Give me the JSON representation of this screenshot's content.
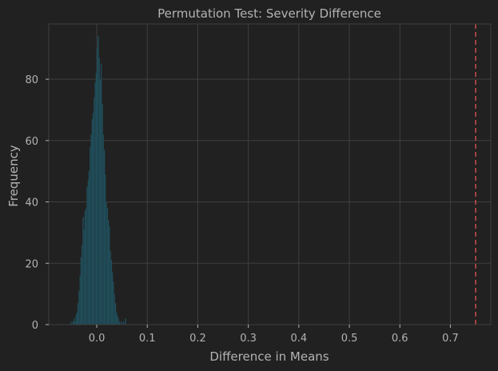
{
  "chart_data": {
    "type": "histogram",
    "title": "Permutation Test: Severity Difference",
    "xlabel": "Difference in Means",
    "ylabel": "Frequency",
    "xlim": [
      -0.095,
      0.78
    ],
    "ylim": [
      0,
      98
    ],
    "xticks": [
      0.0,
      0.1,
      0.2,
      0.3,
      0.4,
      0.5,
      0.6,
      0.7
    ],
    "xtick_labels": [
      "0.0",
      "0.1",
      "0.2",
      "0.3",
      "0.4",
      "0.5",
      "0.6",
      "0.7"
    ],
    "yticks": [
      0,
      20,
      40,
      60,
      80
    ],
    "ytick_labels": [
      "0",
      "20",
      "40",
      "60",
      "80"
    ],
    "grid": true,
    "bin_width": 0.002,
    "bins": [
      [
        -0.052,
        1
      ],
      [
        -0.048,
        1
      ],
      [
        -0.046,
        2
      ],
      [
        -0.044,
        1
      ],
      [
        -0.042,
        3
      ],
      [
        -0.04,
        4
      ],
      [
        -0.038,
        7
      ],
      [
        -0.036,
        11
      ],
      [
        -0.034,
        16
      ],
      [
        -0.032,
        22
      ],
      [
        -0.03,
        26
      ],
      [
        -0.028,
        35
      ],
      [
        -0.026,
        31
      ],
      [
        -0.024,
        37
      ],
      [
        -0.022,
        38
      ],
      [
        -0.02,
        45
      ],
      [
        -0.018,
        47
      ],
      [
        -0.016,
        50
      ],
      [
        -0.014,
        58
      ],
      [
        -0.012,
        62
      ],
      [
        -0.01,
        67
      ],
      [
        -0.008,
        69
      ],
      [
        -0.006,
        74
      ],
      [
        -0.004,
        79
      ],
      [
        -0.002,
        82
      ],
      [
        0.0,
        90
      ],
      [
        0.002,
        94
      ],
      [
        0.004,
        87
      ],
      [
        0.006,
        80
      ],
      [
        0.008,
        85
      ],
      [
        0.01,
        72
      ],
      [
        0.012,
        62
      ],
      [
        0.014,
        57
      ],
      [
        0.016,
        49
      ],
      [
        0.018,
        40
      ],
      [
        0.02,
        38
      ],
      [
        0.022,
        34
      ],
      [
        0.024,
        32
      ],
      [
        0.026,
        24
      ],
      [
        0.028,
        21
      ],
      [
        0.03,
        17
      ],
      [
        0.032,
        14
      ],
      [
        0.034,
        10
      ],
      [
        0.036,
        7
      ],
      [
        0.038,
        4
      ],
      [
        0.04,
        3
      ],
      [
        0.042,
        2
      ],
      [
        0.044,
        1
      ],
      [
        0.048,
        1
      ],
      [
        0.052,
        1
      ],
      [
        0.056,
        2
      ]
    ],
    "observed_line": {
      "x": 0.75,
      "style": "dashed",
      "color": "#cc4c4c"
    },
    "colors": {
      "background": "#212121",
      "grid": "#3f3f3f",
      "text": "#b3b3b3",
      "bar_fill": "#1e5664",
      "bar_edge": "#24363c"
    }
  }
}
